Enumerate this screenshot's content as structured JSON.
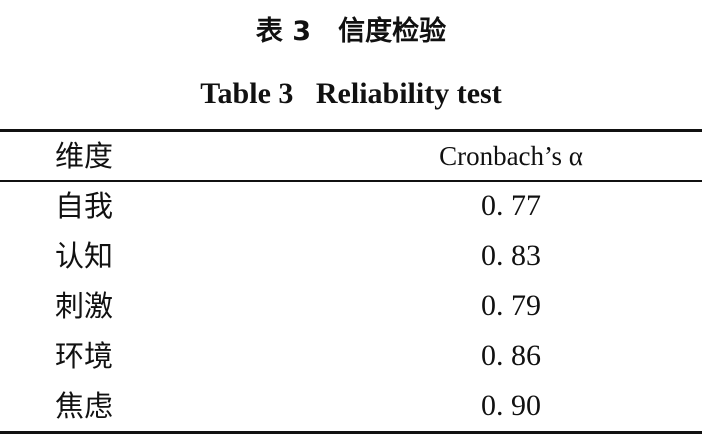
{
  "table": {
    "title_zh": "表 3　信度检验",
    "title_en": "Table 3   Reliability test",
    "headers": [
      "维度",
      "Cronbach’s α"
    ],
    "rows": [
      {
        "dimension": "自我",
        "value": "0. 77"
      },
      {
        "dimension": "认知",
        "value": "0. 83"
      },
      {
        "dimension": "刺激",
        "value": "0. 79"
      },
      {
        "dimension": "环境",
        "value": "0. 86"
      },
      {
        "dimension": "焦虑",
        "value": "0. 90"
      }
    ]
  }
}
